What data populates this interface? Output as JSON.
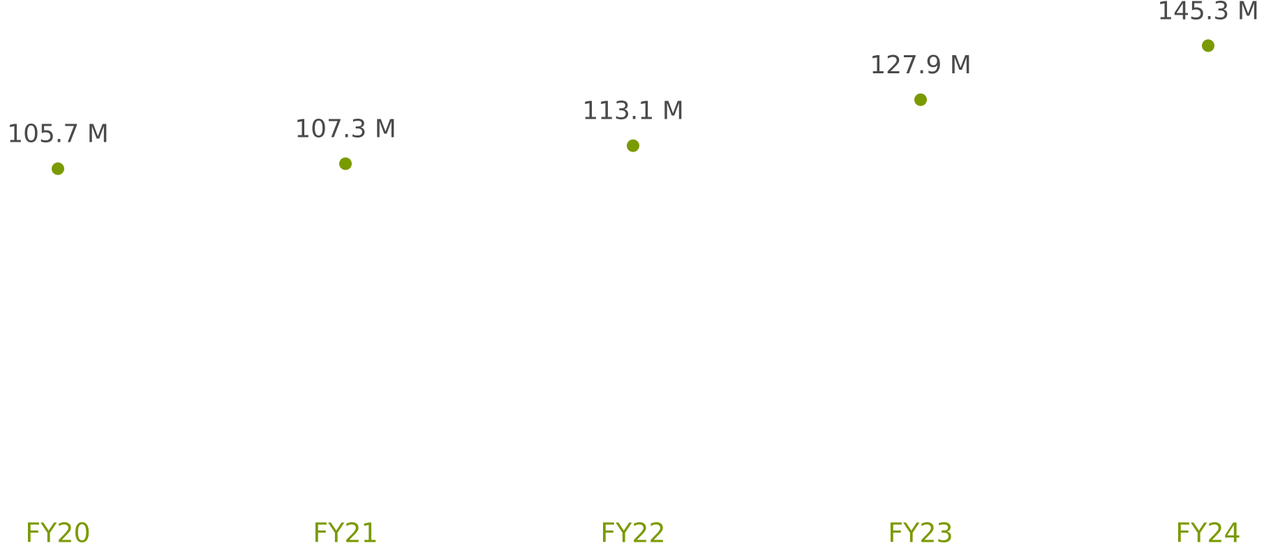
{
  "chart_data": {
    "type": "line",
    "categories": [
      "FY20",
      "FY21",
      "FY22",
      "FY23",
      "FY24"
    ],
    "series": [
      {
        "color": "#7a9a01",
        "values": [
          105.7,
          107.3,
          113.1,
          127.9,
          145.3
        ],
        "value_labels": [
          "105.7 M",
          "107.3 M",
          "113.1 M",
          "127.9 M",
          "145.3 M"
        ]
      }
    ],
    "ylim": [
      0,
      160
    ]
  }
}
